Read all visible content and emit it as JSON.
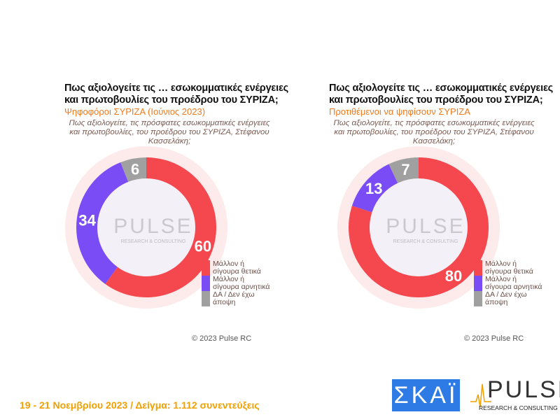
{
  "charts_header": {
    "left": {
      "title_line1": "Πως αξιολογείτε τις … εσωκομματικές ενέργειες",
      "title_line2": "και πρωτοβουλίες του προέδρου του ΣΥΡΙΖΑ;",
      "subtitle": "Ψηφοφόροι ΣΥΡΙΖΑ (Ιούνιος 2023)",
      "question": "Πως αξιολογείτε, τις πρόσφατες εσωκομματικές ενέργειες και πρωτοβουλίες, του προέδρου του ΣΥΡΙΖΑ, Στέφανου Κασσελάκη;",
      "copyright": "© 2023 Pulse RC"
    },
    "right": {
      "title_line1": "Πως αξιολογείτε τις … εσωκομματικές ενέργειες",
      "title_line2": "και πρωτοβουλίες του προέδρου του ΣΥΡΙΖΑ;",
      "subtitle": "Προτιθέμενοι να ψηφίσουν ΣΥΡΙΖΑ",
      "question": "Πως αξιολογείτε, τις πρόσφατες εσωκομματικές ενέργειες και πρωτοβουλίες, του προέδρου του ΣΥΡΙΖΑ, Στέφανου Κασσελάκη;",
      "copyright": "© 2023 Pulse RC"
    }
  },
  "chart_data": [
    {
      "type": "pie",
      "categories": [
        "Μάλλον ή σίγουρα θετικά",
        "Μάλλον ή σίγουρα αρνητικά",
        "ΔΑ / Δεν έχω άποψη"
      ],
      "values": [
        60,
        34,
        6
      ],
      "colors": [
        "#f5474e",
        "#7a4cf5",
        "#a0a0a0"
      ],
      "donut": true,
      "legend": "bottom-right"
    },
    {
      "type": "pie",
      "categories": [
        "Μάλλον ή σίγουρα θετικά",
        "Μάλλον ή σίγουρα αρνητικά",
        "ΔΑ / Δεν έχω άποψη"
      ],
      "values": [
        80,
        13,
        7
      ],
      "colors": [
        "#f5474e",
        "#7a4cf5",
        "#a0a0a0"
      ],
      "donut": true,
      "legend": "bottom-right"
    }
  ],
  "watermark": {
    "word": "PULSE",
    "tagline": "RESEARCH & CONSULTING"
  },
  "footer": {
    "text": "19 - 21  Νοεμβρίου  2023  /  Δείγμα:  1.112 συνεντεύξεις"
  },
  "logos": {
    "skai": "ΣΚΑΪ",
    "pulse": "PULSE",
    "pulse_tagline": "RESEARCH & CONSULTING"
  }
}
